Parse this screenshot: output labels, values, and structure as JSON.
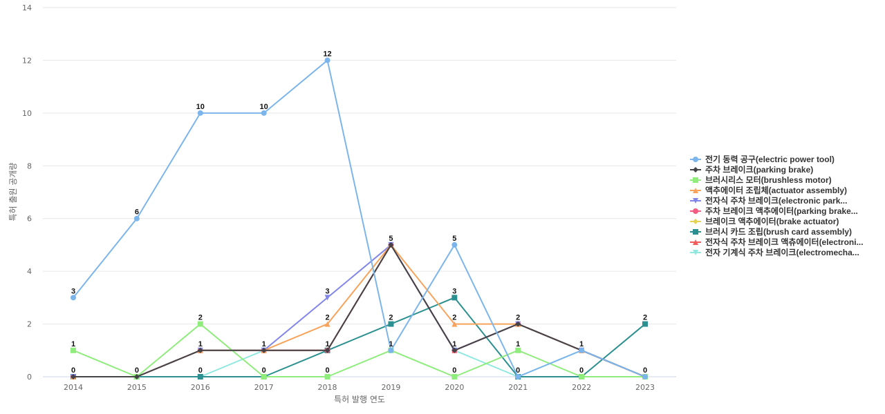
{
  "chart_data": {
    "type": "line",
    "xlabel": "특허 발행 연도",
    "ylabel": "특허 출원 공개량",
    "ylim": [
      0,
      14
    ],
    "yticks": [
      "0",
      "2",
      "4",
      "6",
      "8",
      "10",
      "12",
      "14"
    ],
    "grid": true,
    "legend_position": "right",
    "categories": [
      "2014",
      "2015",
      "2016",
      "2017",
      "2018",
      "2019",
      "2020",
      "2021",
      "2022",
      "2023"
    ],
    "series": [
      {
        "name": "전기 동력 공구(electric power tool)",
        "color": "#7cb5ec",
        "marker": "circle",
        "values": [
          3,
          6,
          10,
          10,
          12,
          1,
          5,
          0,
          1,
          0
        ]
      },
      {
        "name": "주차 브레이크(parking brake)",
        "color": "#434348",
        "marker": "diamond",
        "values": [
          0,
          0,
          1,
          1,
          1,
          5,
          1,
          2,
          1,
          0
        ]
      },
      {
        "name": "브러시리스 모터(brushless motor)",
        "color": "#90ed7d",
        "marker": "square",
        "values": [
          1,
          0,
          2,
          0,
          0,
          1,
          0,
          1,
          0,
          0
        ]
      },
      {
        "name": "액추에이터 조립체(actuator assembly)",
        "color": "#f7a35c",
        "marker": "triangle",
        "values": [
          0,
          0,
          1,
          1,
          2,
          5,
          2,
          2,
          1,
          0
        ]
      },
      {
        "name": "전자식 주차 브레이크(electronic park...",
        "color": "#8085e9",
        "marker": "triangle-down",
        "values": [
          0,
          0,
          1,
          1,
          3,
          5,
          1,
          2,
          1,
          0
        ]
      },
      {
        "name": "주차 브레이크 액추에이터(parking brake...",
        "color": "#f15c80",
        "marker": "circle",
        "values": [
          0,
          0,
          1,
          1,
          1,
          5,
          1,
          2,
          1,
          0
        ]
      },
      {
        "name": "브레이크 액추에이터(brake actuator)",
        "color": "#e4d354",
        "marker": "diamond",
        "values": [
          0,
          0,
          1,
          1,
          1,
          5,
          1,
          2,
          1,
          0
        ]
      },
      {
        "name": "브러시 카드 조립(brush card assembly)",
        "color": "#2b908f",
        "marker": "square",
        "values": [
          0,
          0,
          0,
          0,
          1,
          2,
          3,
          0,
          0,
          2
        ]
      },
      {
        "name": "전자식 주차 브레이크 액츄에이터(electroni...",
        "color": "#f45b5b",
        "marker": "triangle",
        "values": [
          0,
          0,
          1,
          1,
          1,
          5,
          1,
          2,
          1,
          0
        ]
      },
      {
        "name": "전자 기계식 주차 브레이크(electromecha...",
        "color": "#91e8e1",
        "marker": "triangle-down",
        "values": [
          0,
          0,
          0,
          1,
          1,
          5,
          1,
          0,
          1,
          0
        ]
      }
    ],
    "data_labels": [
      {
        "x": "2014",
        "y": 3,
        "text": "3"
      },
      {
        "x": "2014",
        "y": 1,
        "text": "1"
      },
      {
        "x": "2014",
        "y": 0,
        "text": "0"
      },
      {
        "x": "2015",
        "y": 6,
        "text": "6"
      },
      {
        "x": "2015",
        "y": 0,
        "text": "0"
      },
      {
        "x": "2016",
        "y": 10,
        "text": "10"
      },
      {
        "x": "2016",
        "y": 2,
        "text": "2"
      },
      {
        "x": "2016",
        "y": 1,
        "text": "1"
      },
      {
        "x": "2016",
        "y": 0,
        "text": "0"
      },
      {
        "x": "2017",
        "y": 10,
        "text": "10"
      },
      {
        "x": "2017",
        "y": 1,
        "text": "1"
      },
      {
        "x": "2017",
        "y": 0,
        "text": "0"
      },
      {
        "x": "2018",
        "y": 12,
        "text": "12"
      },
      {
        "x": "2018",
        "y": 3,
        "text": "3"
      },
      {
        "x": "2018",
        "y": 2,
        "text": "2"
      },
      {
        "x": "2018",
        "y": 1,
        "text": "1"
      },
      {
        "x": "2018",
        "y": 0,
        "text": "0"
      },
      {
        "x": "2019",
        "y": 5,
        "text": "5"
      },
      {
        "x": "2019",
        "y": 2,
        "text": "2"
      },
      {
        "x": "2019",
        "y": 1,
        "text": "1"
      },
      {
        "x": "2020",
        "y": 5,
        "text": "5"
      },
      {
        "x": "2020",
        "y": 3,
        "text": "3"
      },
      {
        "x": "2020",
        "y": 2,
        "text": "2"
      },
      {
        "x": "2020",
        "y": 1,
        "text": "1"
      },
      {
        "x": "2020",
        "y": 0,
        "text": "0"
      },
      {
        "x": "2021",
        "y": 2,
        "text": "2"
      },
      {
        "x": "2021",
        "y": 1,
        "text": "1"
      },
      {
        "x": "2021",
        "y": 0,
        "text": "0"
      },
      {
        "x": "2022",
        "y": 1,
        "text": "1"
      },
      {
        "x": "2022",
        "y": 0,
        "text": "0"
      },
      {
        "x": "2023",
        "y": 2,
        "text": "2"
      },
      {
        "x": "2023",
        "y": 0,
        "text": "0"
      }
    ]
  }
}
